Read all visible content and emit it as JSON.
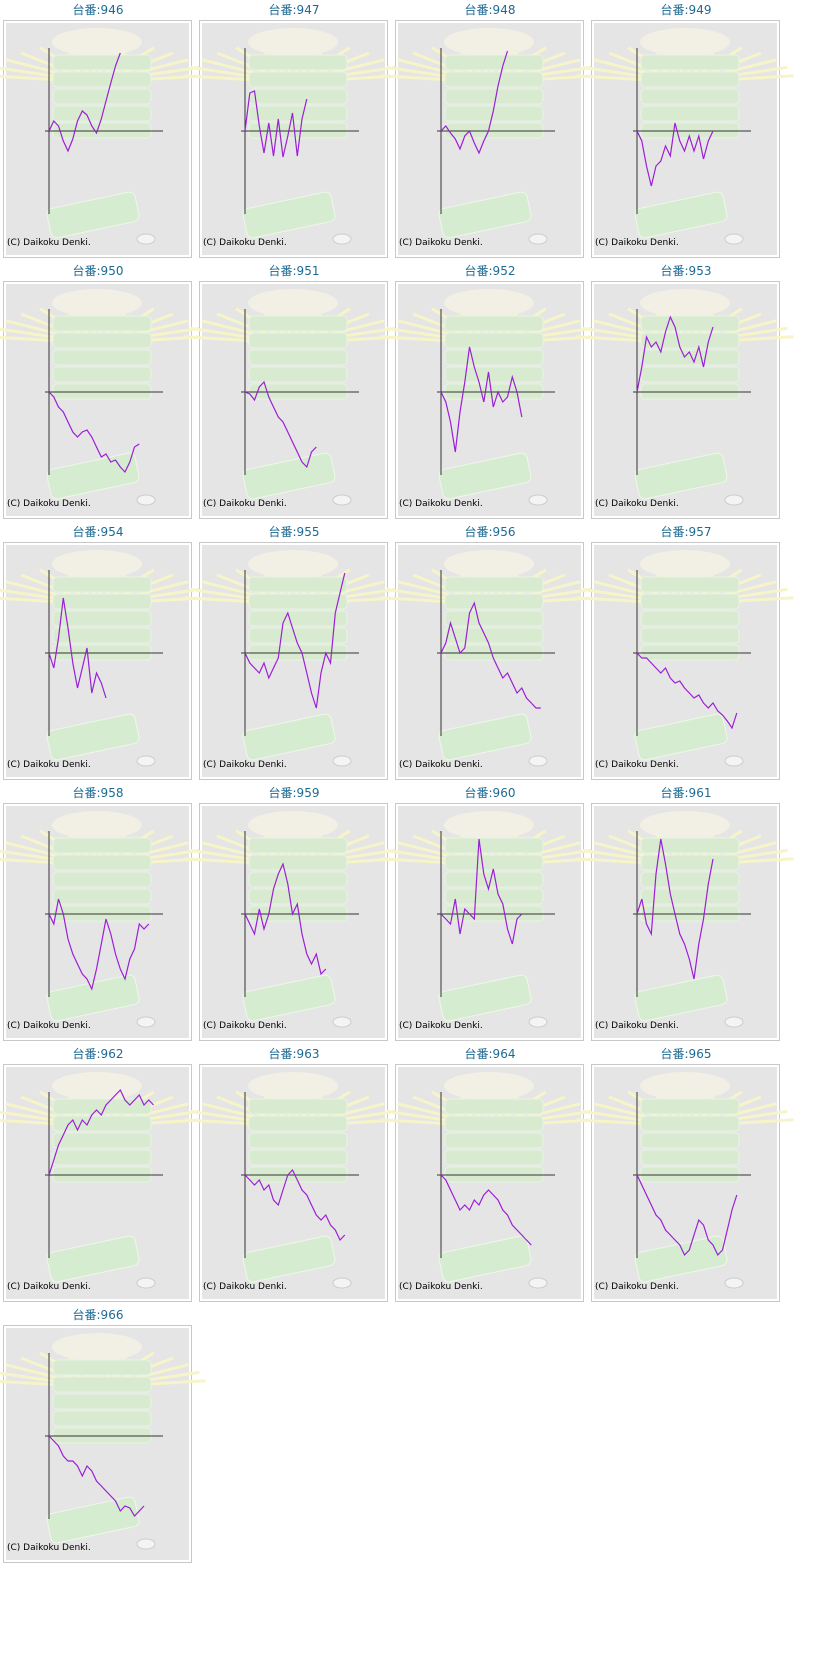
{
  "chart_data": [
    {
      "type": "line",
      "title": "台番:946",
      "annotation": "(C) Daikoku Denki.",
      "xlim": [
        0,
        24
      ],
      "ylim": [
        -82,
        82
      ],
      "values": [
        0,
        10,
        5,
        -10,
        -20,
        -8,
        10,
        20,
        16,
        5,
        -2,
        12,
        30,
        48,
        65,
        78
      ]
    },
    {
      "type": "line",
      "title": "台番:947",
      "annotation": "(C) Daikoku Denki.",
      "xlim": [
        0,
        24
      ],
      "ylim": [
        -82,
        82
      ],
      "values": [
        0,
        38,
        40,
        5,
        -22,
        8,
        -25,
        12,
        -26,
        -5,
        18,
        -25,
        12,
        32
      ]
    },
    {
      "type": "line",
      "title": "台番:948",
      "annotation": "(C) Daikoku Denki.",
      "xlim": [
        0,
        24
      ],
      "ylim": [
        -82,
        82
      ],
      "values": [
        0,
        5,
        -2,
        -8,
        -18,
        -5,
        0,
        -12,
        -22,
        -10,
        0,
        20,
        45,
        65,
        80
      ]
    },
    {
      "type": "line",
      "title": "台番:949",
      "annotation": "(C) Daikoku Denki.",
      "xlim": [
        0,
        24
      ],
      "ylim": [
        -82,
        82
      ],
      "values": [
        0,
        -10,
        -35,
        -55,
        -35,
        -30,
        -15,
        -25,
        8,
        -10,
        -20,
        -5,
        -20,
        -5,
        -28,
        -10,
        0
      ]
    },
    {
      "type": "line",
      "title": "台番:950",
      "annotation": "(C) Daikoku Denki.",
      "xlim": [
        0,
        24
      ],
      "ylim": [
        -82,
        82
      ],
      "values": [
        0,
        -5,
        -15,
        -20,
        -30,
        -40,
        -45,
        -40,
        -38,
        -45,
        -55,
        -65,
        -62,
        -70,
        -68,
        -75,
        -80,
        -70,
        -55,
        -52
      ]
    },
    {
      "type": "line",
      "title": "台番:951",
      "annotation": "(C) Daikoku Denki.",
      "xlim": [
        0,
        24
      ],
      "ylim": [
        -82,
        82
      ],
      "values": [
        0,
        -2,
        -8,
        5,
        10,
        -5,
        -15,
        -25,
        -30,
        -40,
        -50,
        -60,
        -70,
        -75,
        -60,
        -55
      ]
    },
    {
      "type": "line",
      "title": "台番:952",
      "annotation": "(C) Daikoku Denki.",
      "xlim": [
        0,
        24
      ],
      "ylim": [
        -82,
        82
      ],
      "values": [
        0,
        -10,
        -30,
        -60,
        -20,
        10,
        45,
        25,
        10,
        -10,
        20,
        -15,
        0,
        -10,
        -5,
        15,
        0,
        -25
      ]
    },
    {
      "type": "line",
      "title": "台番:953",
      "annotation": "(C) Daikoku Denki.",
      "xlim": [
        0,
        24
      ],
      "ylim": [
        -82,
        82
      ],
      "values": [
        0,
        25,
        55,
        45,
        50,
        40,
        60,
        75,
        65,
        45,
        35,
        40,
        30,
        45,
        25,
        50,
        65
      ]
    },
    {
      "type": "line",
      "title": "台番:954",
      "annotation": "(C) Daikoku Denki.",
      "xlim": [
        0,
        24
      ],
      "ylim": [
        -82,
        82
      ],
      "values": [
        0,
        -15,
        15,
        55,
        25,
        -10,
        -35,
        -15,
        5,
        -40,
        -20,
        -30,
        -45
      ]
    },
    {
      "type": "line",
      "title": "台番:955",
      "annotation": "(C) Daikoku Denki.",
      "xlim": [
        0,
        24
      ],
      "ylim": [
        -82,
        82
      ],
      "values": [
        0,
        -10,
        -15,
        -20,
        -10,
        -25,
        -15,
        -5,
        30,
        40,
        25,
        10,
        0,
        -20,
        -40,
        -55,
        -20,
        0,
        -10,
        40,
        60,
        80
      ]
    },
    {
      "type": "line",
      "title": "台番:956",
      "annotation": "(C) Daikoku Denki.",
      "xlim": [
        0,
        24
      ],
      "ylim": [
        -82,
        82
      ],
      "values": [
        0,
        10,
        30,
        15,
        0,
        5,
        40,
        50,
        30,
        20,
        10,
        -5,
        -15,
        -25,
        -20,
        -30,
        -40,
        -35,
        -45,
        -50,
        -55,
        -55
      ]
    },
    {
      "type": "line",
      "title": "台番:957",
      "annotation": "(C) Daikoku Denki.",
      "xlim": [
        0,
        24
      ],
      "ylim": [
        -82,
        82
      ],
      "values": [
        0,
        -5,
        -5,
        -10,
        -15,
        -20,
        -15,
        -25,
        -30,
        -28,
        -35,
        -40,
        -45,
        -42,
        -50,
        -55,
        -50,
        -58,
        -62,
        -68,
        -75,
        -60
      ]
    },
    {
      "type": "line",
      "title": "台番:958",
      "annotation": "(C) Daikoku Denki.",
      "xlim": [
        0,
        24
      ],
      "ylim": [
        -82,
        82
      ],
      "values": [
        0,
        -10,
        15,
        0,
        -25,
        -40,
        -50,
        -60,
        -65,
        -75,
        -55,
        -30,
        -5,
        -20,
        -40,
        -55,
        -65,
        -45,
        -35,
        -10,
        -15,
        -10
      ]
    },
    {
      "type": "line",
      "title": "台番:959",
      "annotation": "(C) Daikoku Denki.",
      "xlim": [
        0,
        24
      ],
      "ylim": [
        -82,
        82
      ],
      "values": [
        0,
        -10,
        -20,
        5,
        -15,
        0,
        25,
        40,
        50,
        30,
        0,
        10,
        -20,
        -40,
        -50,
        -40,
        -60,
        -55
      ]
    },
    {
      "type": "line",
      "title": "台番:960",
      "annotation": "(C) Daikoku Denki.",
      "xlim": [
        0,
        24
      ],
      "ylim": [
        -82,
        82
      ],
      "values": [
        0,
        -5,
        -10,
        15,
        -20,
        5,
        0,
        -5,
        75,
        40,
        25,
        45,
        20,
        10,
        -15,
        -30,
        -5,
        0
      ]
    },
    {
      "type": "line",
      "title": "台番:961",
      "annotation": "(C) Daikoku Denki.",
      "xlim": [
        0,
        24
      ],
      "ylim": [
        -82,
        82
      ],
      "values": [
        0,
        15,
        -10,
        -20,
        40,
        75,
        50,
        20,
        0,
        -20,
        -30,
        -45,
        -65,
        -30,
        -5,
        30,
        55
      ]
    },
    {
      "type": "line",
      "title": "台番:962",
      "annotation": "(C) Daikoku Denki.",
      "xlim": [
        0,
        24
      ],
      "ylim": [
        -82,
        82
      ],
      "values": [
        0,
        15,
        30,
        40,
        50,
        55,
        45,
        55,
        50,
        60,
        65,
        60,
        70,
        75,
        80,
        85,
        75,
        70,
        75,
        80,
        70,
        75,
        70
      ]
    },
    {
      "type": "line",
      "title": "台番:963",
      "annotation": "(C) Daikoku Denki.",
      "xlim": [
        0,
        24
      ],
      "ylim": [
        -82,
        82
      ],
      "values": [
        0,
        -5,
        -10,
        -5,
        -15,
        -10,
        -25,
        -30,
        -15,
        0,
        5,
        -5,
        -15,
        -20,
        -30,
        -40,
        -45,
        -40,
        -50,
        -55,
        -65,
        -60
      ]
    },
    {
      "type": "line",
      "title": "台番:964",
      "annotation": "(C) Daikoku Denki.",
      "xlim": [
        0,
        24
      ],
      "ylim": [
        -82,
        82
      ],
      "values": [
        0,
        -5,
        -15,
        -25,
        -35,
        -30,
        -35,
        -25,
        -30,
        -20,
        -15,
        -20,
        -25,
        -35,
        -40,
        -50,
        -55,
        -60,
        -65,
        -70
      ]
    },
    {
      "type": "line",
      "title": "台番:965",
      "annotation": "(C) Daikoku Denki.",
      "xlim": [
        0,
        24
      ],
      "ylim": [
        -82,
        82
      ],
      "values": [
        0,
        -10,
        -20,
        -30,
        -40,
        -45,
        -55,
        -60,
        -65,
        -70,
        -80,
        -75,
        -60,
        -45,
        -50,
        -65,
        -70,
        -80,
        -75,
        -55,
        -35,
        -20
      ]
    },
    {
      "type": "line",
      "title": "台番:966",
      "annotation": "(C) Daikoku Denki.",
      "xlim": [
        0,
        24
      ],
      "ylim": [
        -82,
        82
      ],
      "values": [
        0,
        -5,
        -10,
        -20,
        -25,
        -25,
        -30,
        -40,
        -30,
        -35,
        -45,
        -50,
        -55,
        -60,
        -65,
        -75,
        -70,
        -72,
        -80,
        -75,
        -70
      ]
    }
  ]
}
